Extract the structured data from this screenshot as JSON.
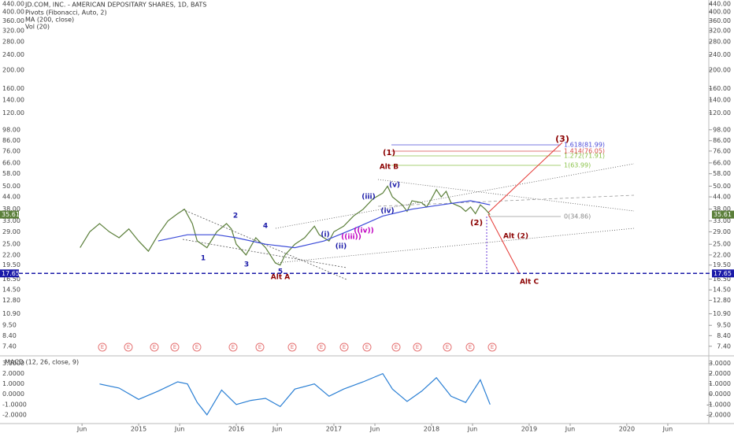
{
  "chart_data": [
    {
      "type": "line",
      "title": "JD.COM, INC. - AMERICAN DEPOSITARY SHARES, 1D, BATS",
      "indicators": [
        "Pivots (Fibonacci, Auto, 2)",
        "MA (200, close)",
        "Vol (20)"
      ],
      "log_scale": true,
      "xlim": [
        2013.58,
        2020.84
      ],
      "xticks": [
        {
          "value": 2014.42,
          "label": "Jun"
        },
        2015,
        {
          "value": 2015.42,
          "label": "Jun"
        },
        2016,
        {
          "value": 2016.42,
          "label": "Jun"
        },
        2017,
        {
          "value": 2017.42,
          "label": "Jun"
        },
        2018,
        {
          "value": 2018.42,
          "label": "Jun"
        },
        2019,
        {
          "value": 2019.42,
          "label": "Jun"
        },
        2020,
        {
          "value": 2020.42,
          "label": "Jun"
        }
      ],
      "ylim": [
        6.6,
        461
      ],
      "yticks": [
        {
          "value": 440,
          "label": "440.00"
        },
        {
          "value": 400,
          "label": "400.00"
        },
        {
          "value": 360,
          "label": "360.00"
        },
        {
          "value": 320,
          "label": "320.00"
        },
        {
          "value": 280,
          "label": "280.00"
        },
        {
          "value": 240,
          "label": "240.00"
        },
        {
          "value": 200,
          "label": "200.00"
        },
        {
          "value": 160,
          "label": "160.00"
        },
        {
          "value": 140,
          "label": "140.00"
        },
        {
          "value": 120,
          "label": "120.00"
        },
        {
          "value": 98,
          "label": "98.00"
        },
        {
          "value": 86,
          "label": "86.00"
        },
        {
          "value": 76,
          "label": "76.00"
        },
        {
          "value": 66,
          "label": "66.00"
        },
        {
          "value": 58,
          "label": "58.00"
        },
        {
          "value": 50,
          "label": "50.00"
        },
        {
          "value": 44,
          "label": "44.00"
        },
        {
          "value": 38,
          "label": "38.00"
        },
        {
          "value": 33,
          "label": "33.00"
        },
        {
          "value": 29,
          "label": "29.00"
        },
        {
          "value": 25,
          "label": "25.00"
        },
        {
          "value": 22,
          "label": "22.00"
        },
        {
          "value": 19.5,
          "label": "19.50"
        },
        {
          "value": 16.5,
          "label": "16.50"
        },
        {
          "value": 14.5,
          "label": "14.50"
        },
        {
          "value": 12.8,
          "label": "12.80"
        },
        {
          "value": 10.9,
          "label": "10.90"
        },
        {
          "value": 9.5,
          "label": "9.50"
        },
        {
          "value": 8.4,
          "label": "8.40"
        },
        {
          "value": 7.4,
          "label": "7.40"
        }
      ],
      "last_price": 35.61,
      "support_level": 17.65,
      "series": [
        {
          "color": "#5b7f3a",
          "x": [
            2014.4,
            2014.5,
            2014.6,
            2014.7,
            2014.8,
            2014.9,
            2015.0,
            2015.1,
            2015.2,
            2015.3,
            2015.4,
            2015.47,
            2015.55,
            2015.6,
            2015.7,
            2015.8,
            2015.9,
            2015.95,
            2016.0,
            2016.1,
            2016.2,
            2016.3,
            2016.4,
            2016.45,
            2016.5,
            2016.6,
            2016.7,
            2016.8,
            2016.85,
            2016.95,
            2017.0,
            2017.1,
            2017.2,
            2017.3,
            2017.4,
            2017.5,
            2017.55,
            2017.6,
            2017.7,
            2017.75,
            2017.8,
            2017.9,
            2017.95,
            2018.0,
            2018.05,
            2018.1,
            2018.15,
            2018.2,
            2018.3,
            2018.35,
            2018.4,
            2018.45,
            2018.5,
            2018.55,
            2018.6
          ],
          "values": [
            24,
            29,
            32,
            29,
            27,
            30,
            26,
            23,
            28,
            33,
            36,
            38,
            32,
            26,
            24,
            29,
            32,
            30,
            25,
            22,
            27,
            24,
            20,
            19.5,
            22,
            25,
            27,
            31,
            28,
            26,
            29,
            31,
            35,
            38,
            43,
            46,
            50,
            44,
            40,
            37,
            42,
            41,
            39,
            43,
            48,
            44,
            47,
            41,
            39,
            37,
            39,
            36,
            40,
            38,
            35.6
          ]
        },
        {
          "color": "#3b4bd8",
          "x": [
            2015.2,
            2015.5,
            2015.8,
            2016.0,
            2016.3,
            2016.6,
            2016.9,
            2017.2,
            2017.5,
            2017.8,
            2018.1,
            2018.4,
            2018.6
          ],
          "values": [
            26,
            28,
            28,
            27,
            25,
            24,
            26,
            30,
            35,
            38,
            40,
            42,
            40
          ]
        }
      ],
      "fib_labels": [
        "1.618(81.99)",
        "1.414(76.05)",
        "1.272(71.91)",
        "1(63.99)",
        "0(34.86)"
      ],
      "earnings_marker": "E",
      "annotations": [
        "(3)",
        "(1)",
        "(2)",
        "Alt B",
        "Alt A",
        "Alt (2)",
        "Alt C",
        "1",
        "2",
        "3",
        "4",
        "5",
        "(i)",
        "(ii)",
        "(iii)",
        "(iv)",
        "(v)",
        "((iii))",
        "((iv))"
      ]
    },
    {
      "type": "line",
      "title": "MACD (12, 26, close, 9)",
      "ylim": [
        -2.7,
        3.5
      ],
      "yticks": [
        {
          "value": 3,
          "label": "3.0000"
        },
        {
          "value": 2,
          "label": "2.0000"
        },
        {
          "value": 1,
          "label": "1.0000"
        },
        {
          "value": 0,
          "label": "0.0000"
        },
        {
          "value": -1,
          "label": "-1.0000"
        },
        {
          "value": -2,
          "label": "-2.0000"
        }
      ],
      "series": [
        {
          "color": "#2a7fd4",
          "x": [
            2014.6,
            2014.8,
            2015.0,
            2015.2,
            2015.4,
            2015.5,
            2015.6,
            2015.7,
            2015.85,
            2016.0,
            2016.15,
            2016.3,
            2016.45,
            2016.6,
            2016.8,
            2016.95,
            2017.1,
            2017.3,
            2017.5,
            2017.6,
            2017.75,
            2017.9,
            2018.05,
            2018.2,
            2018.35,
            2018.5,
            2018.6
          ],
          "values": [
            1.0,
            0.6,
            -0.5,
            0.3,
            1.2,
            1.0,
            -0.8,
            -2.0,
            0.4,
            -1.0,
            -0.6,
            -0.4,
            -1.2,
            0.5,
            1.0,
            -0.2,
            0.5,
            1.2,
            2.0,
            0.5,
            -0.7,
            0.3,
            1.6,
            -0.2,
            -0.8,
            1.4,
            -1.0
          ]
        }
      ]
    }
  ]
}
